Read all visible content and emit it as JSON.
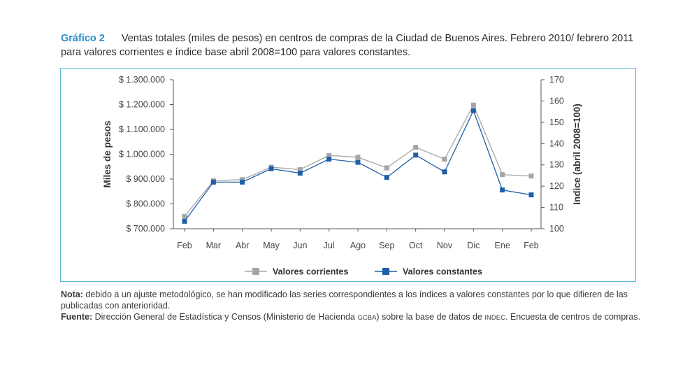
{
  "header": {
    "figure_label": "Gráfico 2",
    "title": "Ventas totales (miles de pesos) en centros de compras de la Ciudad de Buenos Aires. Febrero 2010/ febrero 2011 para valores corrientes e índice base abril 2008=100 para valores constantes."
  },
  "chart_data": {
    "type": "line",
    "categories": [
      "Feb",
      "Mar",
      "Abr",
      "May",
      "Jun",
      "Jul",
      "Ago",
      "Sep",
      "Oct",
      "Nov",
      "Dic",
      "Ene",
      "Feb"
    ],
    "ylabel_left": "Miles de pesos",
    "ylabel_right": "Indice (abril 2008=100)",
    "ylim_left": [
      700000,
      1300000
    ],
    "ylim_right": [
      100,
      170
    ],
    "yticks_left": [
      "$ 700.000",
      "$ 800.000",
      "$ 900.000",
      "$ 1.000.000",
      "$ 1.100.000",
      "$ 1.200.000",
      "$ 1.300.000"
    ],
    "yticks_left_values": [
      700000,
      800000,
      900000,
      1000000,
      1100000,
      1200000,
      1300000
    ],
    "yticks_right": [
      "100",
      "110",
      "120",
      "130",
      "140",
      "150",
      "160",
      "170"
    ],
    "yticks_right_values": [
      100,
      110,
      120,
      130,
      140,
      150,
      160,
      170
    ],
    "legend_position": "bottom",
    "series": [
      {
        "name": "Valores corrientes",
        "axis": "left",
        "color": "#a6a6a6",
        "values": [
          750000,
          893000,
          898000,
          948000,
          938000,
          995000,
          988000,
          945000,
          1028000,
          980000,
          1198000,
          918000,
          912000
        ]
      },
      {
        "name": "Valores constantes",
        "axis": "right",
        "color": "#1f5fa8",
        "values": [
          103.5,
          121.9,
          121.9,
          128.2,
          126.1,
          132.7,
          131.2,
          124.1,
          134.6,
          126.7,
          155.5,
          118.2,
          115.9
        ]
      }
    ]
  },
  "notes": {
    "nota_label": "Nota:",
    "nota_text": " debido a un ajuste metodológico, se han modificado las series correspondientes a los índices a valores constantes por lo que difieren de las publicadas con anterioridad.",
    "fuente_label": "Fuente:",
    "fuente_text_1": " Dirección General de Estadística y Censos (Ministerio de Hacienda ",
    "fuente_sc_1": "GCBA",
    "fuente_text_2": ") sobre la base de datos de ",
    "fuente_sc_2": "INDEC",
    "fuente_text_3": ". Encuesta de centros de compras."
  }
}
